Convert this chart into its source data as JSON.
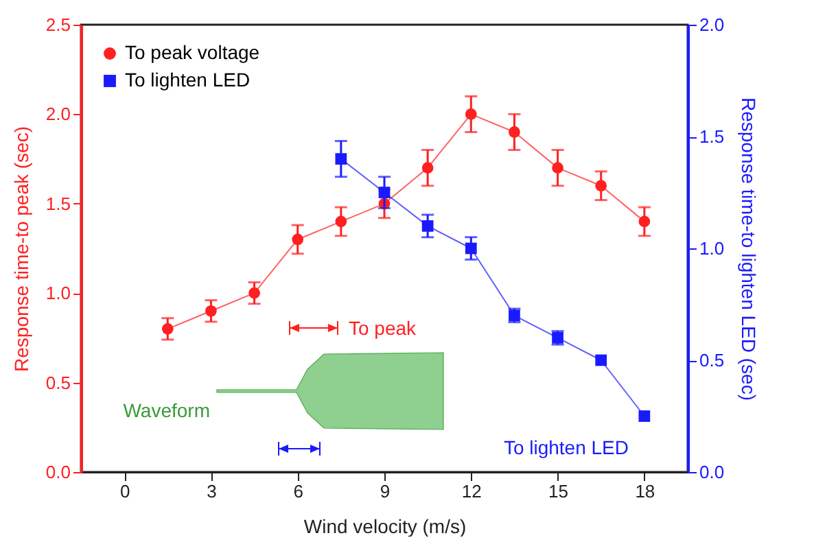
{
  "chart_data": {
    "type": "line",
    "xlabel": "Wind velocity (m/s)",
    "ylabel": "Response time-to peak (sec)",
    "y2label": "Response time-to lighten LED (sec)",
    "xlim": [
      -1.5,
      19.5
    ],
    "xticks": [
      0,
      3,
      6,
      9,
      12,
      15,
      18
    ],
    "ylim": [
      0,
      2.5
    ],
    "yticks": [
      {
        "value": 0,
        "label": "0.0"
      },
      {
        "value": 0.5,
        "label": "0.5"
      },
      {
        "value": 1,
        "label": "1.0"
      },
      {
        "value": 1.5,
        "label": "1.5"
      },
      {
        "value": 2,
        "label": "2.0"
      },
      {
        "value": 2.5,
        "label": "2.5"
      }
    ],
    "y2lim": [
      0,
      2.0
    ],
    "y2ticks": [
      {
        "value": 0,
        "label": "0.0"
      },
      {
        "value": 0.5,
        "label": "0.5"
      },
      {
        "value": 1,
        "label": "1.0"
      },
      {
        "value": 1.5,
        "label": "1.5"
      },
      {
        "value": 2,
        "label": "2.0"
      }
    ],
    "legend": "top left",
    "marker": "circle",
    "grid": false,
    "annotations": [
      "To peak",
      "Waveform",
      "To lighten LED"
    ],
    "series": [
      {
        "name": "To peak voltage",
        "color": "#ff2020",
        "marker": "circle",
        "x": [
          1.5,
          3,
          4.5,
          6,
          7.5,
          9,
          10.5,
          12,
          13.5,
          15,
          16.5,
          18
        ],
        "values": [
          0.8,
          0.9,
          1.0,
          1.3,
          1.4,
          1.5,
          1.7,
          2.0,
          1.9,
          1.7,
          1.6,
          1.4
        ],
        "errors": [
          0.06,
          0.06,
          0.06,
          0.08,
          0.08,
          0.08,
          0.1,
          0.1,
          0.1,
          0.1,
          0.08,
          0.08
        ]
      },
      {
        "name": "To lighten LED",
        "color": "#1a1aff",
        "marker": "square",
        "axis": "y2",
        "x": [
          7.5,
          9,
          10.5,
          12,
          13.5,
          15,
          16.5,
          18
        ],
        "values": [
          1.4,
          1.25,
          1.1,
          1.0,
          0.7,
          0.6,
          0.5,
          0.25
        ],
        "errors": [
          0.08,
          0.07,
          0.05,
          0.05,
          0.03,
          0.03,
          null,
          null
        ]
      }
    ]
  }
}
